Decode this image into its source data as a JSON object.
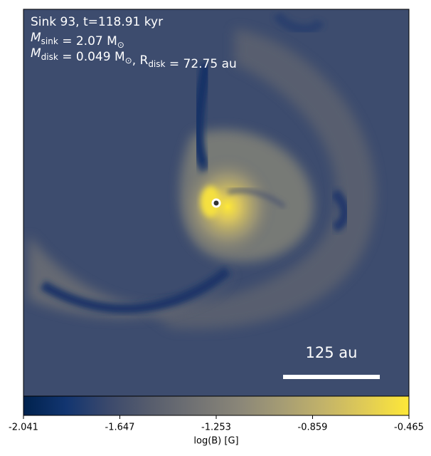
{
  "chart_data": {
    "type": "heatmap",
    "annotations": [
      [
        {
          "text": "Sink 93, t=118.91 kyr"
        }
      ],
      [
        {
          "text": "M"
        },
        {
          "sub": "sink"
        },
        {
          "text": " = 2.07 M"
        },
        {
          "sub": "⊙"
        }
      ],
      [
        {
          "text": "M"
        },
        {
          "sub": "disk"
        },
        {
          "text": " = 0.049 M"
        },
        {
          "sub": "⊙"
        },
        {
          "text": ", R"
        },
        {
          "sub": "disk"
        },
        {
          "text": " = 72.75 au"
        }
      ]
    ],
    "scale_bar": "125 au",
    "colorbar": {
      "label": "log(B) [G]",
      "lim": [
        -2.041,
        -0.465
      ],
      "ticks": [
        -2.041,
        -1.647,
        -1.253,
        -0.859,
        -0.465
      ]
    }
  }
}
